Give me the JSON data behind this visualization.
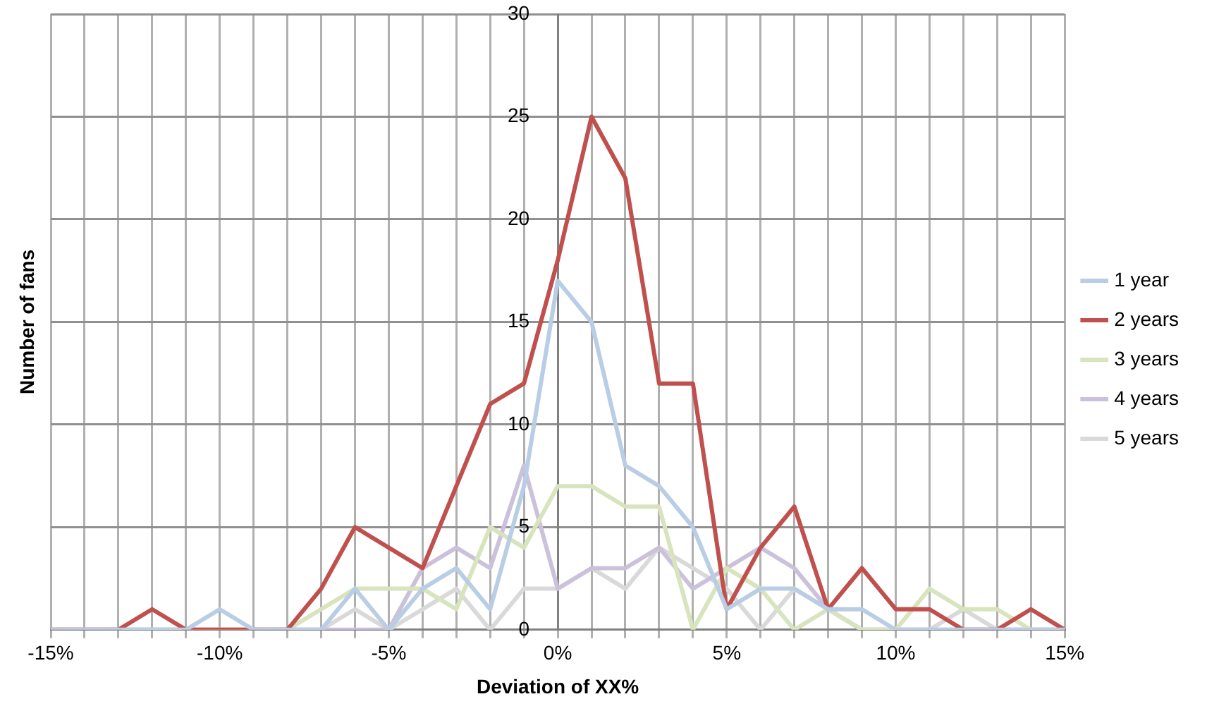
{
  "chart_data": {
    "type": "line",
    "xlabel": "Deviation of XX%",
    "ylabel": "Number of fans",
    "x": [
      -15,
      -14,
      -13,
      -12,
      -11,
      -10,
      -9,
      -8,
      -7,
      -6,
      -5,
      -4,
      -3,
      -2,
      -1,
      0,
      1,
      2,
      3,
      4,
      5,
      6,
      7,
      8,
      9,
      10,
      11,
      12,
      13,
      14,
      15
    ],
    "xlim": [
      -15,
      15
    ],
    "xticks": [
      {
        "value": -15,
        "label": "-15%"
      },
      {
        "value": -14,
        "label": null
      },
      {
        "value": -13,
        "label": null
      },
      {
        "value": -12,
        "label": null
      },
      {
        "value": -11,
        "label": null
      },
      {
        "value": -10,
        "label": "-10%"
      },
      {
        "value": -9,
        "label": null
      },
      {
        "value": -8,
        "label": null
      },
      {
        "value": -7,
        "label": null
      },
      {
        "value": -6,
        "label": null
      },
      {
        "value": -5,
        "label": "-5%"
      },
      {
        "value": -4,
        "label": null
      },
      {
        "value": -3,
        "label": null
      },
      {
        "value": -2,
        "label": null
      },
      {
        "value": -1,
        "label": null
      },
      {
        "value": 0,
        "label": "0%"
      },
      {
        "value": 1,
        "label": null
      },
      {
        "value": 2,
        "label": null
      },
      {
        "value": 3,
        "label": null
      },
      {
        "value": 4,
        "label": null
      },
      {
        "value": 5,
        "label": "5%"
      },
      {
        "value": 6,
        "label": null
      },
      {
        "value": 7,
        "label": null
      },
      {
        "value": 8,
        "label": null
      },
      {
        "value": 9,
        "label": null
      },
      {
        "value": 10,
        "label": "10%"
      },
      {
        "value": 11,
        "label": null
      },
      {
        "value": 12,
        "label": null
      },
      {
        "value": 13,
        "label": null
      },
      {
        "value": 14,
        "label": null
      },
      {
        "value": 15,
        "label": "15%"
      }
    ],
    "ylim": [
      0,
      30
    ],
    "yticks": [
      0,
      5,
      10,
      15,
      20,
      25,
      30
    ],
    "grid": true,
    "legend": "right",
    "marker": "none",
    "line_style": "solid",
    "series": [
      {
        "name": "1 year",
        "color": "#b9cde5",
        "values": [
          0,
          0,
          0,
          0,
          0,
          1,
          0,
          0,
          0,
          2,
          0,
          2,
          3,
          1,
          7,
          17,
          15,
          8,
          7,
          5,
          1,
          2,
          2,
          1,
          1,
          0,
          0,
          0,
          0,
          0,
          0
        ]
      },
      {
        "name": "2 years",
        "color": "#c0504d",
        "values": [
          0,
          0,
          0,
          1,
          0,
          0,
          0,
          0,
          2,
          5,
          4,
          3,
          7,
          11,
          12,
          18,
          25,
          22,
          12,
          12,
          1,
          4,
          6,
          1,
          3,
          1,
          1,
          0,
          0,
          1,
          0
        ]
      },
      {
        "name": "3 years",
        "color": "#d7e4bd",
        "values": [
          0,
          0,
          0,
          0,
          0,
          0,
          0,
          0,
          1,
          2,
          2,
          2,
          1,
          5,
          4,
          7,
          7,
          6,
          6,
          0,
          3,
          2,
          0,
          1,
          0,
          0,
          2,
          1,
          1,
          0,
          0
        ]
      },
      {
        "name": "4 years",
        "color": "#ccc1da",
        "values": [
          0,
          0,
          0,
          0,
          0,
          0,
          0,
          0,
          0,
          0,
          0,
          3,
          4,
          3,
          8,
          2,
          3,
          3,
          4,
          2,
          3,
          4,
          3,
          1,
          0,
          0,
          0,
          0,
          0,
          0,
          0
        ]
      },
      {
        "name": "5 years",
        "color": "#d9d9d9",
        "values": [
          0,
          0,
          0,
          0,
          0,
          0,
          0,
          0,
          0,
          1,
          0,
          1,
          2,
          0,
          2,
          2,
          3,
          2,
          4,
          3,
          2,
          0,
          2,
          1,
          0,
          0,
          0,
          1,
          0,
          0,
          0
        ]
      }
    ]
  }
}
